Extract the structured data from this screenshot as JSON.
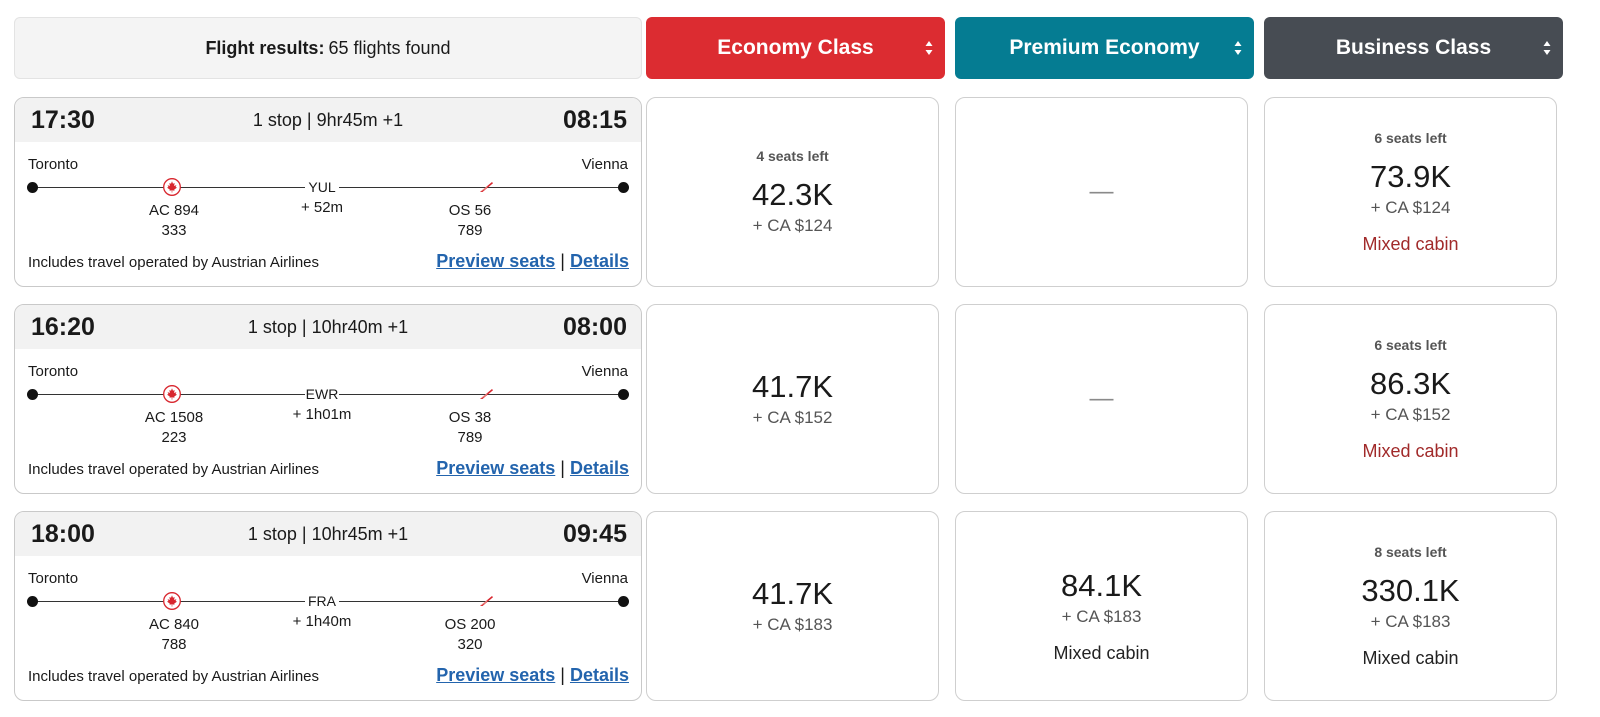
{
  "results": {
    "label": "Flight results:",
    "count_text": "65 flights found"
  },
  "cabins": [
    {
      "label": "Economy Class",
      "color": "#dc2c31"
    },
    {
      "label": "Premium Economy",
      "color": "#057c92"
    },
    {
      "label": "Business Class",
      "color": "#474c53"
    }
  ],
  "flights": [
    {
      "dep_time": "17:30",
      "arr_time": "08:15",
      "summary": "1 stop | 9hr45m +1",
      "origin": "Toronto",
      "destination": "Vienna",
      "connection": "YUL",
      "layover": "+ 52m",
      "seg1": {
        "flight": "AC 894",
        "aircraft": "333"
      },
      "seg2": {
        "flight": "OS 56",
        "aircraft": "789"
      },
      "operated": "Includes travel operated by Austrian Airlines",
      "preview": "Preview seats",
      "details": "Details",
      "economy": {
        "seats": "4 seats left",
        "miles": "42.3K",
        "tax": "+ CA $124"
      },
      "premium": {
        "empty": "—"
      },
      "business": {
        "seats": "6 seats left",
        "miles": "73.9K",
        "tax": "+ CA $124",
        "note": "Mixed cabin"
      }
    },
    {
      "dep_time": "16:20",
      "arr_time": "08:00",
      "summary": "1 stop | 10hr40m +1",
      "origin": "Toronto",
      "destination": "Vienna",
      "connection": "EWR",
      "layover": "+ 1h01m",
      "seg1": {
        "flight": "AC 1508",
        "aircraft": "223"
      },
      "seg2": {
        "flight": "OS 38",
        "aircraft": "789"
      },
      "operated": "Includes travel operated by Austrian Airlines",
      "preview": "Preview seats",
      "details": "Details",
      "economy": {
        "miles": "41.7K",
        "tax": "+ CA $152"
      },
      "premium": {
        "empty": "—"
      },
      "business": {
        "seats": "6 seats left",
        "miles": "86.3K",
        "tax": "+ CA $152",
        "note": "Mixed cabin"
      }
    },
    {
      "dep_time": "18:00",
      "arr_time": "09:45",
      "summary": "1 stop | 10hr45m +1",
      "origin": "Toronto",
      "destination": "Vienna",
      "connection": "FRA",
      "layover": "+ 1h40m",
      "seg1": {
        "flight": "AC 840",
        "aircraft": "788"
      },
      "seg2": {
        "flight": "OS 200",
        "aircraft": "320"
      },
      "operated": "Includes travel operated by Austrian Airlines",
      "preview": "Preview seats",
      "details": "Details",
      "economy": {
        "miles": "41.7K",
        "tax": "+ CA $183"
      },
      "premium": {
        "miles": "84.1K",
        "tax": "+ CA $183",
        "note": "Mixed cabin"
      },
      "business": {
        "seats": "8 seats left",
        "miles": "330.1K",
        "tax": "+ CA $183",
        "note": "Mixed cabin"
      }
    }
  ],
  "icons": {
    "air_canada": "maple-leaf-icon",
    "austrian": "austrian-logo-icon",
    "sort": "sort-arrows-icon"
  },
  "colors": {
    "link": "#2364ad",
    "mixed_business": "#a12a2a"
  }
}
